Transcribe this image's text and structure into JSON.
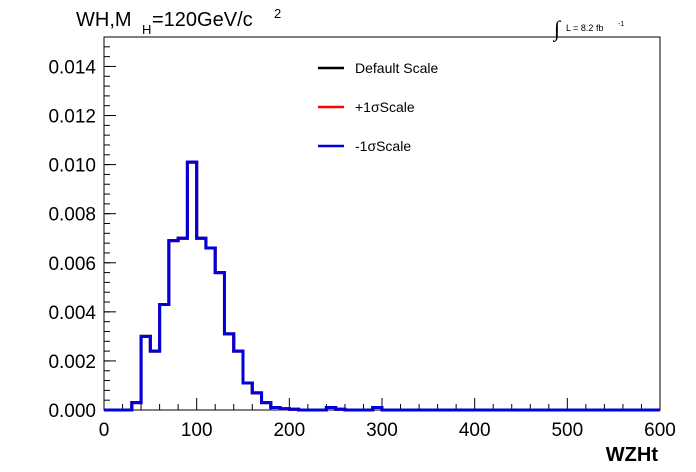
{
  "chart_data": {
    "type": "line",
    "title_main": "WH,M",
    "title_sub": "H",
    "title_rest": "=120GeV/c",
    "title_sup": "2",
    "lumi_integral": "∫",
    "lumi_text": "L = 8.2 fb",
    "lumi_sup": "-1",
    "xlabel": "WZHt",
    "xlim": [
      0,
      600
    ],
    "ylim": [
      0,
      0.0152
    ],
    "x_ticks": [
      "0",
      "100",
      "200",
      "300",
      "400",
      "500",
      "600"
    ],
    "y_ticks": [
      "0.000",
      "0.002",
      "0.004",
      "0.006",
      "0.008",
      "0.010",
      "0.012",
      "0.014"
    ],
    "legend": [
      {
        "label": "Default Scale",
        "color": "#000000"
      },
      {
        "label": "+1σScale",
        "color": "#ff0000"
      },
      {
        "label": "-1σScale",
        "color": "#0000dd"
      }
    ],
    "bin_width": 10,
    "bin_edges_start": 0,
    "series": [
      {
        "name": "Default Scale",
        "color": "#000000",
        "values": [
          0,
          0,
          0,
          0.0003,
          0.003,
          0.0024,
          0.0043,
          0.0069,
          0.007,
          0.0101,
          0.007,
          0.0066,
          0.0056,
          0.0031,
          0.0024,
          0.0011,
          0.0007,
          0.0003,
          0.0001,
          5e-05,
          3e-05,
          0,
          0,
          0,
          0.0001,
          3e-05,
          0,
          0,
          0,
          0.0001,
          0,
          0,
          0,
          0,
          0,
          0,
          0,
          0,
          0,
          0,
          0,
          0,
          0,
          0,
          0,
          0,
          0,
          0,
          0,
          0,
          0,
          0,
          0,
          0,
          0,
          0,
          0,
          0,
          0,
          0
        ]
      },
      {
        "name": "+1σScale",
        "color": "#ff0000",
        "values": [
          0,
          0,
          0,
          0.0003,
          0.003,
          0.0024,
          0.0043,
          0.0069,
          0.007,
          0.0101,
          0.007,
          0.0066,
          0.0056,
          0.0031,
          0.0024,
          0.0011,
          0.0007,
          0.0003,
          0.0001,
          5e-05,
          3e-05,
          0,
          0,
          0,
          0.0001,
          3e-05,
          0,
          0,
          0,
          0.0001,
          0,
          0,
          0,
          0,
          0,
          0,
          0,
          0,
          0,
          0,
          0,
          0,
          0,
          0,
          0,
          0,
          0,
          0,
          0,
          0,
          0,
          0,
          0,
          0,
          0,
          0,
          0,
          0,
          0,
          0
        ]
      },
      {
        "name": "-1σScale",
        "color": "#0000dd",
        "values": [
          0,
          0,
          0,
          0.0003,
          0.003,
          0.0024,
          0.0043,
          0.0069,
          0.007,
          0.0101,
          0.007,
          0.0066,
          0.0056,
          0.0031,
          0.0024,
          0.0011,
          0.0007,
          0.0003,
          0.0001,
          5e-05,
          3e-05,
          0,
          0,
          0,
          0.0001,
          3e-05,
          0,
          0,
          0,
          0.0001,
          0,
          0,
          0,
          0,
          0,
          0,
          0,
          0,
          0,
          0,
          0,
          0,
          0,
          0,
          0,
          0,
          0,
          0,
          0,
          0,
          0,
          0,
          0,
          0,
          0,
          0,
          0,
          0,
          0,
          0
        ]
      }
    ]
  }
}
